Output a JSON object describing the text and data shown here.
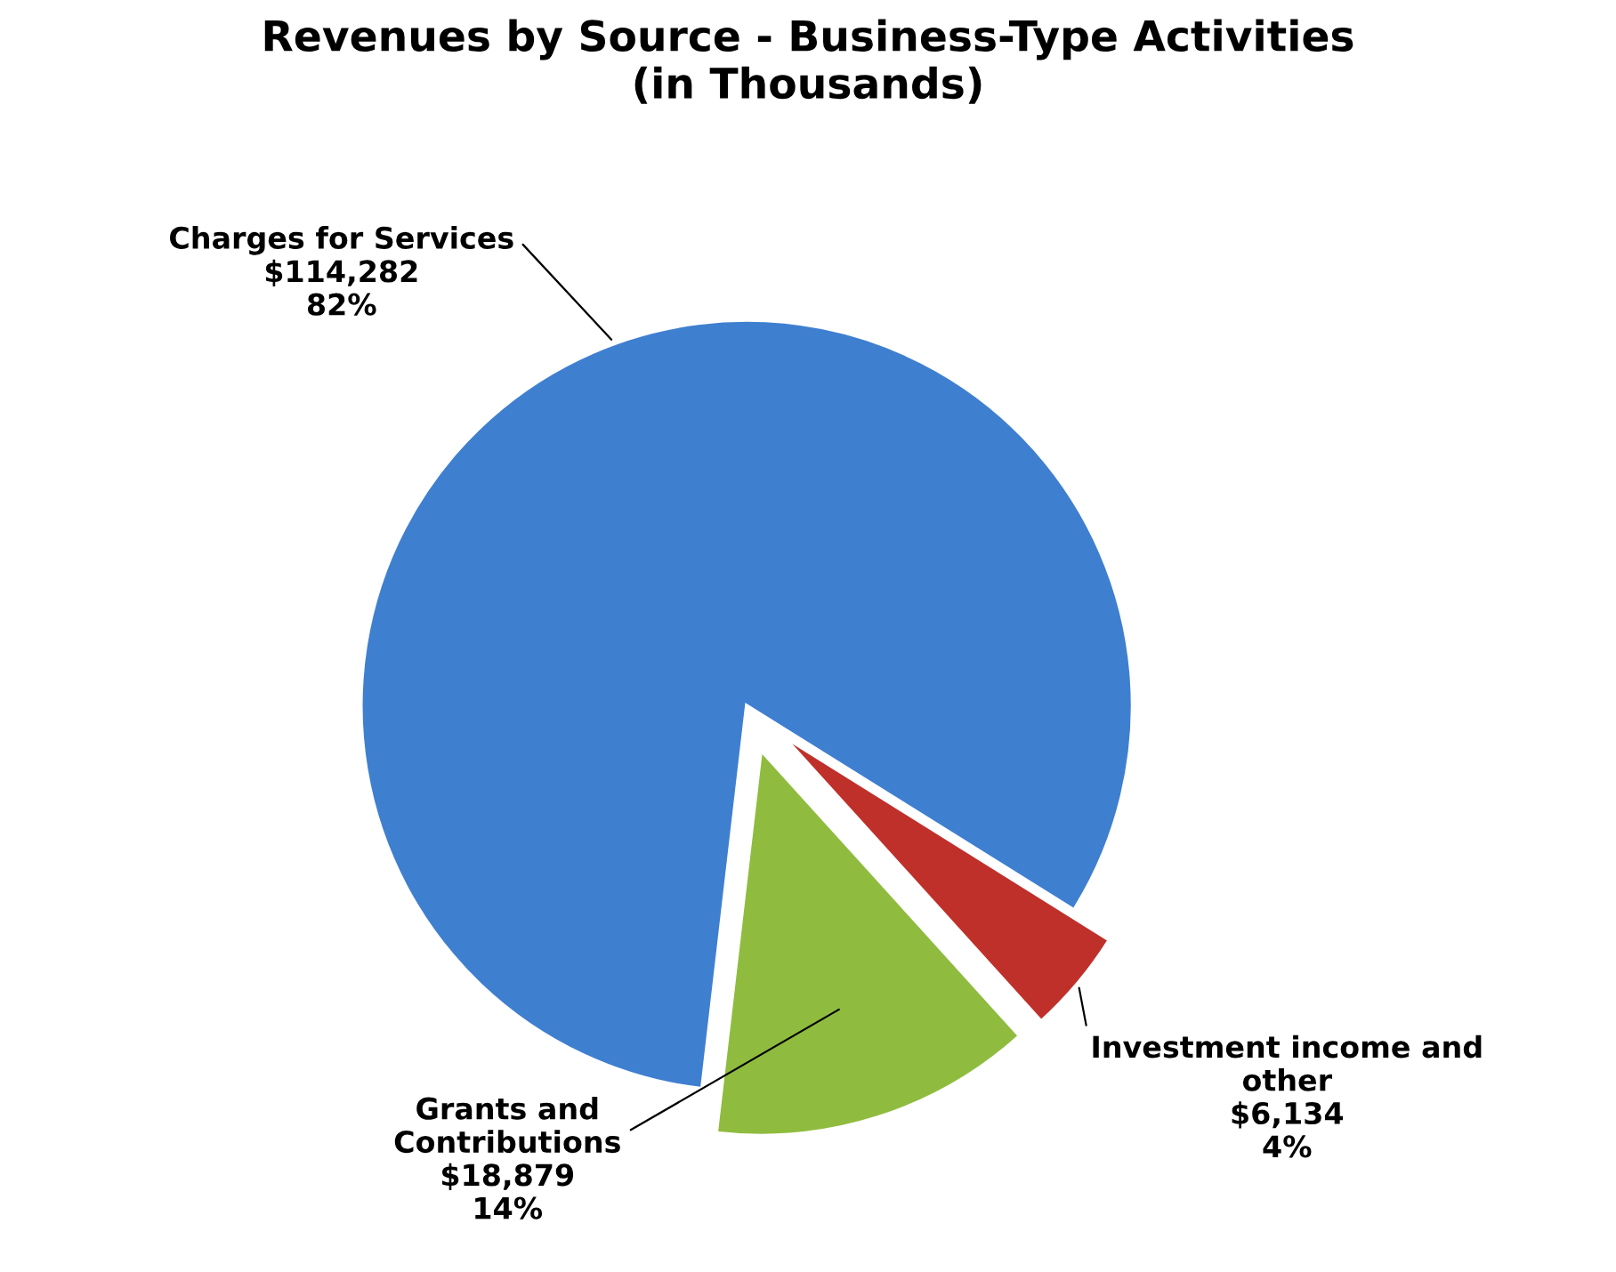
{
  "chart_data": {
    "type": "pie",
    "title": "Revenues by Source - Business-Type Activities\n(in Thousands)",
    "categories": [
      "Charges for Services",
      "Grants and\nContributions",
      "Investment income and\nother"
    ],
    "values": [
      114282,
      18879,
      6134
    ],
    "value_labels": [
      "$114,282\n82%",
      "$18,879\n14%",
      "$6,134\n4%"
    ],
    "colors": [
      "#3f7fd0",
      "#8fbc3f",
      "#c0302a"
    ],
    "legend": false
  }
}
